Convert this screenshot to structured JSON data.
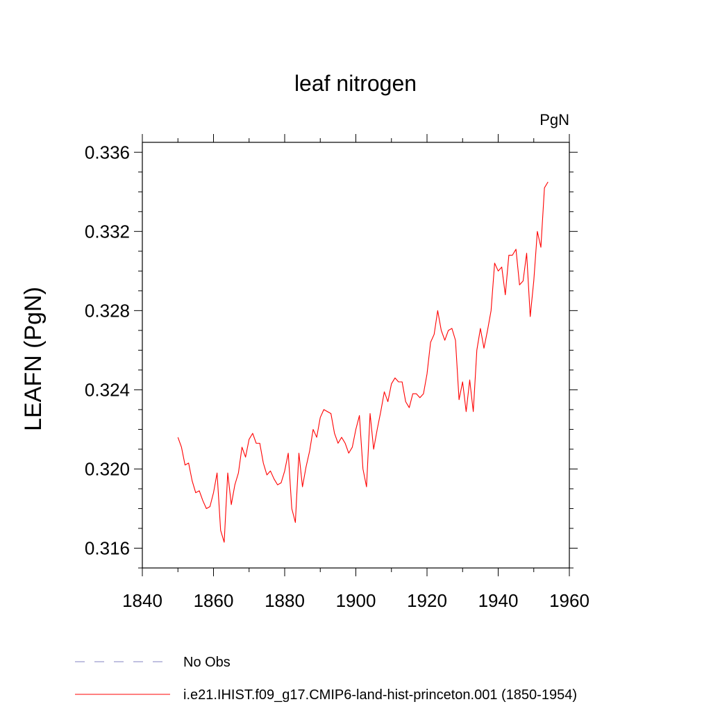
{
  "chart_data": {
    "type": "line",
    "title": "leaf nitrogen",
    "units_label": "PgN",
    "xlabel": "",
    "ylabel": "LEAFN  (PgN)",
    "xlim": [
      1840,
      1960
    ],
    "ylim": [
      0.315,
      0.3365
    ],
    "xticks": [
      1840,
      1860,
      1880,
      1900,
      1920,
      1940,
      1960
    ],
    "xtick_labels": [
      "1840",
      "1860",
      "1880",
      "1900",
      "1920",
      "1940",
      "1960"
    ],
    "yticks": [
      0.316,
      0.32,
      0.324,
      0.328,
      0.332,
      0.336
    ],
    "ytick_labels": [
      "0.316",
      "0.320",
      "0.324",
      "0.328",
      "0.332",
      "0.336"
    ],
    "grid": false,
    "legend_position": "bottom-left",
    "series": [
      {
        "name": "i.e21.IHIST.f09_g17.CMIP6-land-hist-princeton.001 (1850-1954)",
        "color": "#ff0000",
        "style": "solid",
        "x": [
          1850,
          1851,
          1852,
          1853,
          1854,
          1855,
          1856,
          1857,
          1858,
          1859,
          1860,
          1861,
          1862,
          1863,
          1864,
          1865,
          1866,
          1867,
          1868,
          1869,
          1870,
          1871,
          1872,
          1873,
          1874,
          1875,
          1876,
          1877,
          1878,
          1879,
          1880,
          1881,
          1882,
          1883,
          1884,
          1885,
          1886,
          1887,
          1888,
          1889,
          1890,
          1891,
          1892,
          1893,
          1894,
          1895,
          1896,
          1897,
          1898,
          1899,
          1900,
          1901,
          1902,
          1903,
          1904,
          1905,
          1906,
          1907,
          1908,
          1909,
          1910,
          1911,
          1912,
          1913,
          1914,
          1915,
          1916,
          1917,
          1918,
          1919,
          1920,
          1921,
          1922,
          1923,
          1924,
          1925,
          1926,
          1927,
          1928,
          1929,
          1930,
          1931,
          1932,
          1933,
          1934,
          1935,
          1936,
          1937,
          1938,
          1939,
          1940,
          1941,
          1942,
          1943,
          1944,
          1945,
          1946,
          1947,
          1948,
          1949,
          1950,
          1951,
          1952,
          1953,
          1954
        ],
        "y": [
          0.3216,
          0.3211,
          0.3202,
          0.3203,
          0.3194,
          0.3188,
          0.3189,
          0.3184,
          0.318,
          0.3181,
          0.3188,
          0.3198,
          0.3169,
          0.3163,
          0.3198,
          0.3182,
          0.3192,
          0.3198,
          0.3211,
          0.3206,
          0.3215,
          0.3218,
          0.3213,
          0.3213,
          0.3203,
          0.3197,
          0.3199,
          0.3195,
          0.3192,
          0.3193,
          0.3199,
          0.3208,
          0.318,
          0.3173,
          0.3208,
          0.3191,
          0.3201,
          0.3209,
          0.322,
          0.3216,
          0.3226,
          0.323,
          0.3229,
          0.3228,
          0.3218,
          0.3213,
          0.3216,
          0.3213,
          0.3208,
          0.3211,
          0.322,
          0.3227,
          0.32,
          0.3191,
          0.3228,
          0.321,
          0.322,
          0.3229,
          0.3239,
          0.3234,
          0.3243,
          0.3246,
          0.3244,
          0.3244,
          0.3234,
          0.3231,
          0.3238,
          0.3238,
          0.3236,
          0.3238,
          0.3248,
          0.3264,
          0.3268,
          0.328,
          0.327,
          0.3265,
          0.327,
          0.3271,
          0.3265,
          0.3235,
          0.3244,
          0.3229,
          0.3245,
          0.3229,
          0.326,
          0.3271,
          0.3261,
          0.327,
          0.328,
          0.3304,
          0.33,
          0.3302,
          0.3288,
          0.3308,
          0.3308,
          0.3311,
          0.3293,
          0.3295,
          0.3309,
          0.3277,
          0.3295,
          0.332,
          0.3312,
          0.3342,
          0.3345
        ]
      },
      {
        "name": "No Obs",
        "color": "#8080c0",
        "style": "dashed",
        "x": [],
        "y": []
      }
    ]
  }
}
